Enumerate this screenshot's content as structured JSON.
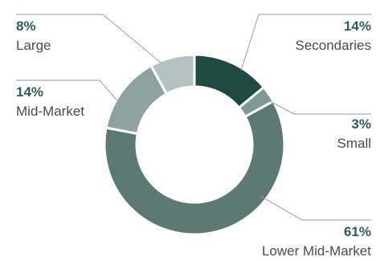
{
  "chart_data": {
    "type": "pie",
    "variant": "donut",
    "slices": [
      {
        "label": "Secondaries",
        "value": 14,
        "value_label": "14%",
        "color": "#1f4a42"
      },
      {
        "label": "Small",
        "value": 3,
        "value_label": "3%",
        "color": "#7f9a94"
      },
      {
        "label": "Lower Mid-Market",
        "value": 61,
        "value_label": "61%",
        "color": "#5c7a72"
      },
      {
        "label": "Mid-Market",
        "value": 14,
        "value_label": "14%",
        "color": "#8da39d"
      },
      {
        "label": "Large",
        "value": 8,
        "value_label": "8%",
        "color": "#b3c2be"
      }
    ],
    "legend": "none",
    "label_style": "callout-lines"
  }
}
